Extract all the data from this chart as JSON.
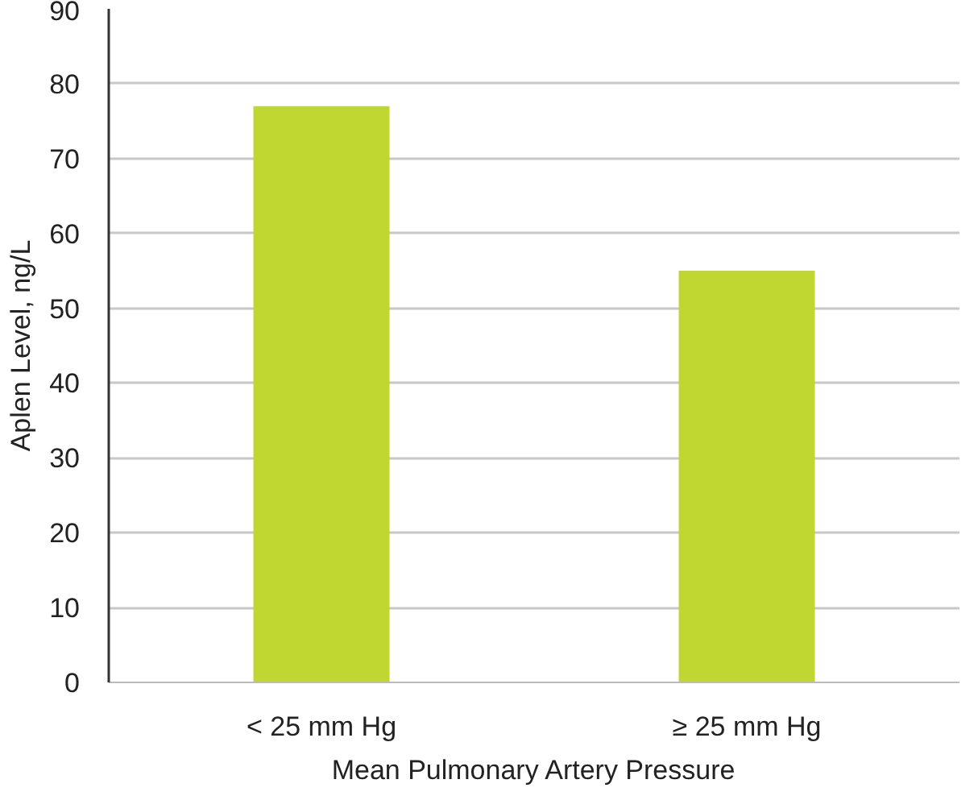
{
  "chart_data": {
    "type": "bar",
    "xlabel": "Mean Pulmonary Artery Pressure",
    "ylabel": "Aplen Level, ng/L",
    "categories": [
      "< 25 mm Hg",
      "≥ 25 mm Hg"
    ],
    "values": [
      77,
      55
    ],
    "color": "#bfd730",
    "ylim": [
      0,
      90
    ],
    "yticks": [
      0,
      10,
      20,
      30,
      40,
      50,
      60,
      70,
      80,
      90
    ],
    "grid": "y"
  }
}
